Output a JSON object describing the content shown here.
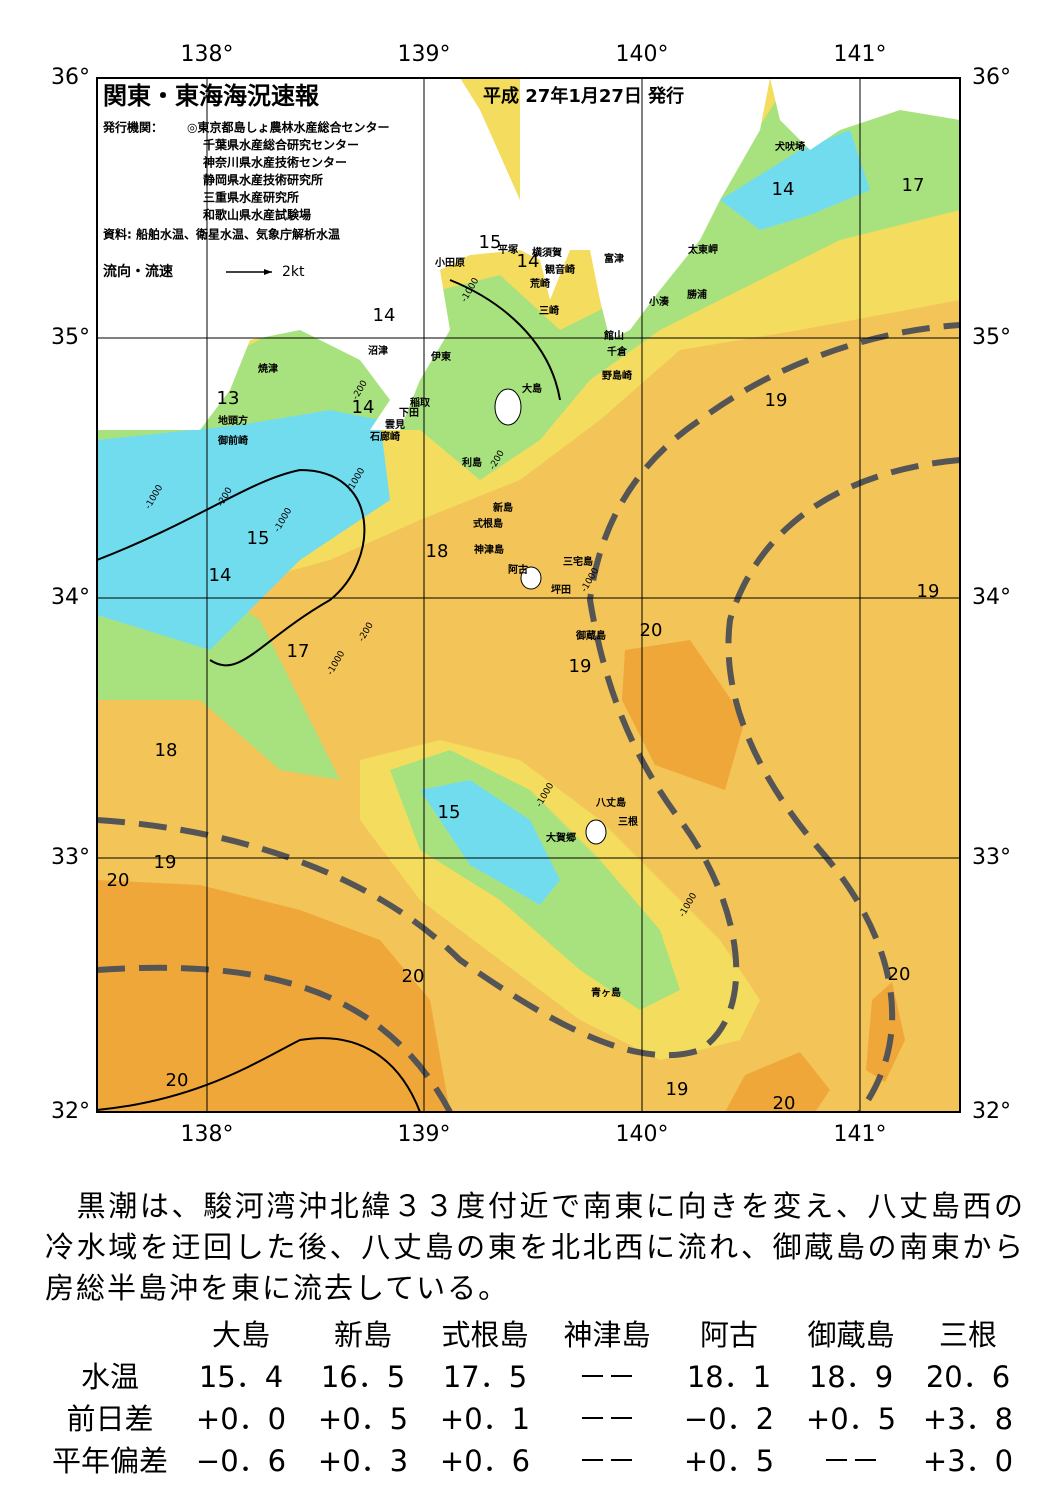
{
  "map": {
    "title": "関東・東海海況速報",
    "issue_date": "平成 27年1月27日 発行",
    "publisher_label": "発行機関：",
    "publishers": [
      "◎東京都島しょ農林水産総合センター",
      "千葉県水産総合研究センター",
      "神奈川県水産技術センター",
      "静岡県水産技術研究所",
      "三重県水産研究所",
      "和歌山県水産試験場"
    ],
    "source": "資料: 船舶水温、衛星水温、気象庁解析水温",
    "legend": {
      "label": "流向・流速",
      "unit": "2kt"
    },
    "lon_labels": [
      "138°",
      "139°",
      "140°",
      "141°"
    ],
    "lat_labels": [
      "36°",
      "35°",
      "34°",
      "33°",
      "32°"
    ],
    "place_names": [
      "犬吠埼",
      "太東岬",
      "勝浦",
      "小湊",
      "富津",
      "館山",
      "千倉",
      "野島崎",
      "横須賀",
      "観音崎",
      "荒崎",
      "三崎",
      "平塚",
      "小田原",
      "沼津",
      "伊東",
      "稲取",
      "下田",
      "雲見",
      "石廊崎",
      "焼津",
      "地頭方",
      "御前崎",
      "大島",
      "利島",
      "新島",
      "式根島",
      "神津島",
      "阿古",
      "三宅島",
      "坪田",
      "御蔵島",
      "八丈島",
      "三根",
      "大賀郷",
      "青ヶ島"
    ],
    "contour_labels": [
      "15",
      "14",
      "14",
      "14",
      "13",
      "14",
      "17",
      "19",
      "15",
      "14",
      "18",
      "17",
      "20",
      "19",
      "19",
      "18",
      "15",
      "19",
      "20",
      "20",
      "20",
      "20",
      "19",
      "20"
    ],
    "depth_labels": [
      "-1000",
      "-200",
      "-1000",
      "-200",
      "-1000",
      "-200",
      "-1000",
      "-200",
      "-1000",
      "-1000",
      "-1000",
      "-1000"
    ]
  },
  "description": "　黒潮は、駿河湾沖北緯３３度付近で南東に向きを変え、八丈島西の冷水域を迂回した後、八丈島の東を北北西に流れ、御蔵島の南東から房総半島沖を東に流去している。",
  "table": {
    "columns": [
      "大島",
      "新島",
      "式根島",
      "神津島",
      "阿古",
      "御蔵島",
      "三根"
    ],
    "rows": [
      {
        "label": "水温",
        "cells": [
          "15．4",
          "16．5",
          "17．5",
          "－－",
          "18．1",
          "18．9",
          "20．6"
        ]
      },
      {
        "label": "前日差",
        "cells": [
          "+0．0",
          "+0．5",
          "+0．1",
          "－－",
          "−0．2",
          "+0．5",
          "+3．8"
        ]
      },
      {
        "label": "平年偏差",
        "cells": [
          "−0．6",
          "+0．3",
          "+0．6",
          "－－",
          "+0．5",
          "－－",
          "+3．0"
        ]
      }
    ]
  }
}
